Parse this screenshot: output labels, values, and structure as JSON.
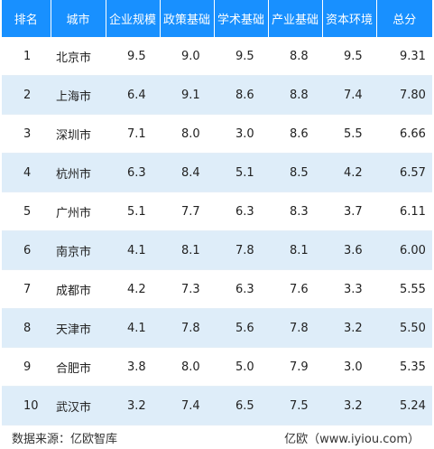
{
  "table": {
    "headers": [
      "排名",
      "城市",
      "企业规模",
      "政策基础",
      "学术基础",
      "产业基础",
      "资本环境",
      "总分"
    ],
    "rows": [
      {
        "rank": "1",
        "city": "北京市",
        "enterprise": "9.5",
        "policy": "9.0",
        "academic": "9.5",
        "industry": "8.8",
        "capital": "9.5",
        "total": "9.31"
      },
      {
        "rank": "2",
        "city": "上海市",
        "enterprise": "6.4",
        "policy": "9.1",
        "academic": "8.6",
        "industry": "8.8",
        "capital": "7.4",
        "total": "7.80"
      },
      {
        "rank": "3",
        "city": "深圳市",
        "enterprise": "7.1",
        "policy": "8.0",
        "academic": "3.0",
        "industry": "8.6",
        "capital": "5.5",
        "total": "6.66"
      },
      {
        "rank": "4",
        "city": "杭州市",
        "enterprise": "6.3",
        "policy": "8.4",
        "academic": "5.1",
        "industry": "8.5",
        "capital": "4.2",
        "total": "6.57"
      },
      {
        "rank": "5",
        "city": "广州市",
        "enterprise": "5.1",
        "policy": "7.7",
        "academic": "6.3",
        "industry": "8.3",
        "capital": "3.7",
        "total": "6.11"
      },
      {
        "rank": "6",
        "city": "南京市",
        "enterprise": "4.1",
        "policy": "8.1",
        "academic": "7.8",
        "industry": "8.1",
        "capital": "3.6",
        "total": "6.00"
      },
      {
        "rank": "7",
        "city": "成都市",
        "enterprise": "4.2",
        "policy": "7.3",
        "academic": "6.3",
        "industry": "7.6",
        "capital": "3.3",
        "total": "5.55"
      },
      {
        "rank": "8",
        "city": "天津市",
        "enterprise": "4.1",
        "policy": "7.8",
        "academic": "5.6",
        "industry": "7.8",
        "capital": "3.2",
        "total": "5.50"
      },
      {
        "rank": "9",
        "city": "合肥市",
        "enterprise": "3.8",
        "policy": "8.0",
        "academic": "5.0",
        "industry": "7.9",
        "capital": "3.0",
        "total": "5.35"
      },
      {
        "rank": "10",
        "city": "武汉市",
        "enterprise": "3.2",
        "policy": "7.4",
        "academic": "6.5",
        "industry": "7.5",
        "capital": "3.2",
        "total": "5.24"
      }
    ]
  },
  "footer": {
    "source": "数据来源：亿欧智库",
    "watermark": "亿欧（www.iyiou.com）"
  },
  "colors": {
    "header_bg": "#1890ff",
    "header_text": "#ffffff",
    "alt_row_bg": "#deedf9"
  }
}
